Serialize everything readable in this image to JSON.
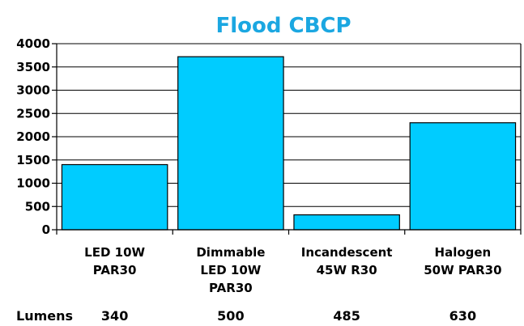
{
  "chart_data": {
    "type": "bar",
    "title": "Flood CBCP",
    "categories": [
      [
        "LED  10W",
        "PAR30"
      ],
      [
        "Dimmable",
        "LED  10W",
        "PAR30"
      ],
      [
        "Incandescent",
        "45W  R30"
      ],
      [
        "Halogen",
        "50W  PAR30"
      ]
    ],
    "values": [
      1400,
      3720,
      320,
      2300
    ],
    "ylim": [
      0,
      4000
    ],
    "yticks": [
      0,
      500,
      1000,
      1500,
      2000,
      2500,
      3000,
      3500,
      4000
    ],
    "grid": true,
    "bar_color": "#00ccff"
  },
  "footer": {
    "label": "Lumens",
    "values": [
      "340",
      "500",
      "485",
      "630"
    ]
  }
}
